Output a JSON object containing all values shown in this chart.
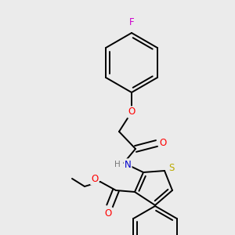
{
  "bg_color": "#ebebeb",
  "bond_color": "#000000",
  "bond_width": 1.4,
  "atom_colors": {
    "F": "#cc00cc",
    "O": "#ff0000",
    "N": "#0000cc",
    "S": "#bbaa00",
    "H": "#777777"
  },
  "font_size": 8.5,
  "fig_size": [
    3.0,
    3.0
  ],
  "dpi": 100
}
